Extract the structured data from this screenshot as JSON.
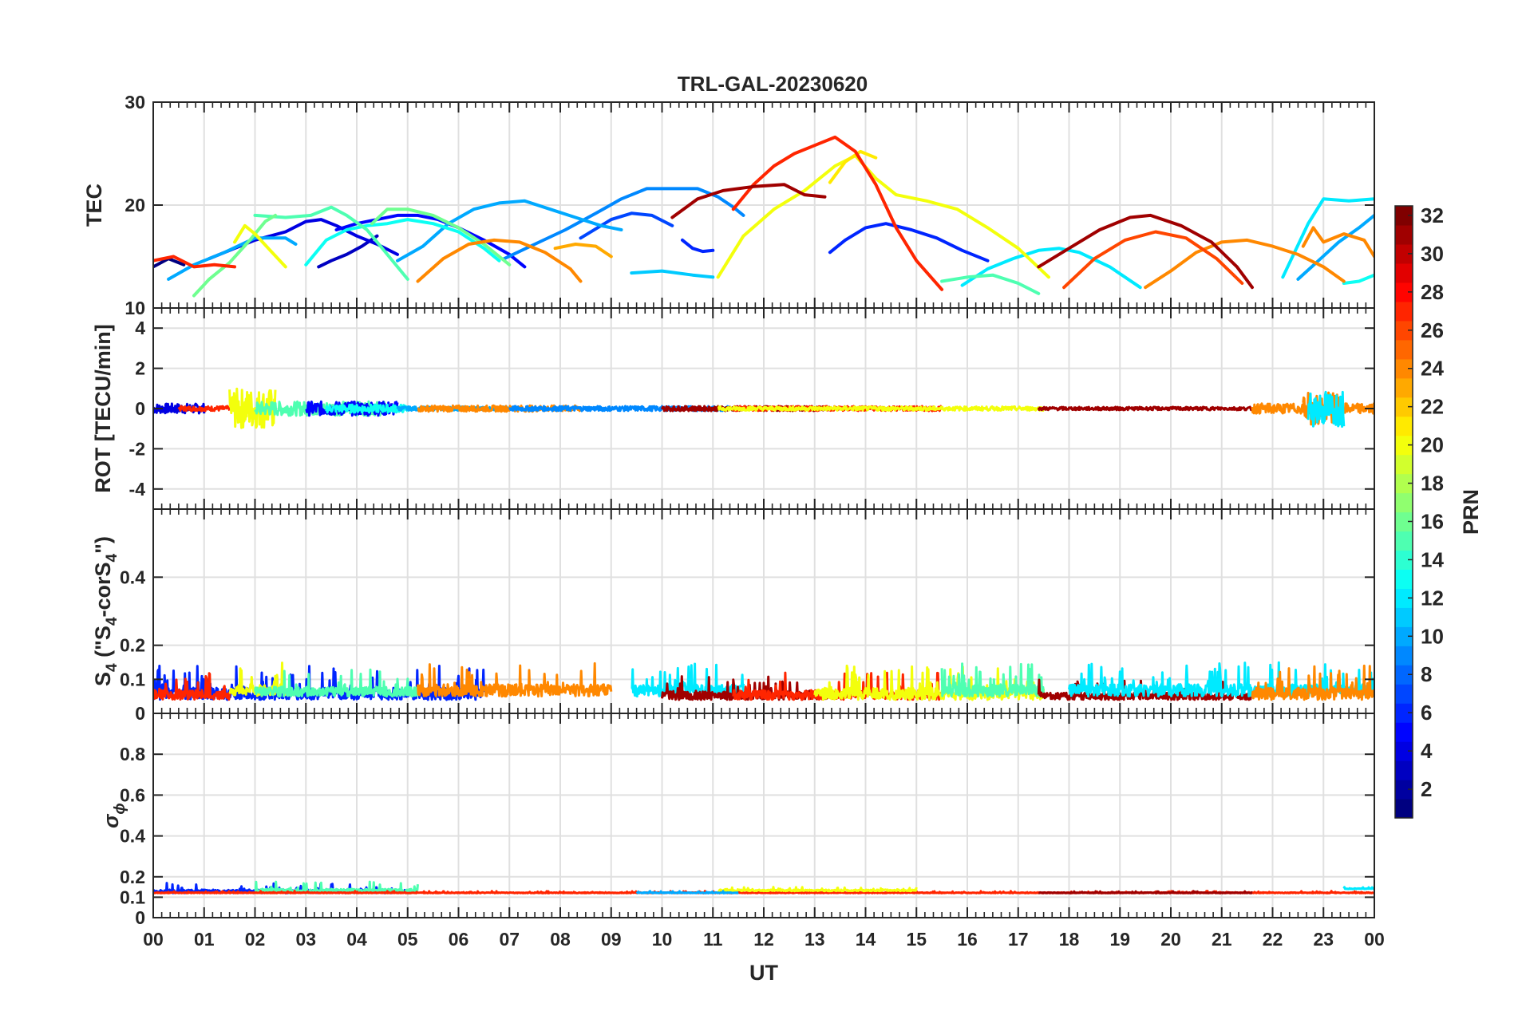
{
  "figure": {
    "title": "TRL-GAL-20230620",
    "x_label": "UT",
    "colorbar_label": "PRN"
  },
  "chart_data": [
    {
      "type": "line",
      "panel": "TEC",
      "ylabel": "TEC",
      "ylim": [
        10,
        30
      ],
      "yticks": [
        "10",
        "20",
        "30"
      ],
      "xlim": [
        0,
        24
      ],
      "grid": true,
      "series": [
        {
          "prn": 1,
          "x": [
            0,
            0.3,
            0.6
          ],
          "y": [
            14.0,
            14.8,
            14.2
          ]
        },
        {
          "prn": 3,
          "x": [
            3.25,
            3.5,
            3.8,
            4.1,
            4.4
          ],
          "y": [
            14.0,
            14.6,
            15.2,
            16.0,
            17.0
          ]
        },
        {
          "prn": 4,
          "x": [
            1.1,
            1.6,
            2.0,
            2.6,
            3.0,
            3.3,
            3.6,
            4.0,
            4.4,
            4.8
          ],
          "y": [
            14.8,
            15.8,
            16.6,
            17.4,
            18.4,
            18.6,
            18.0,
            17.0,
            16.2,
            15.2
          ]
        },
        {
          "prn": 5,
          "x": [
            3.6,
            4.0,
            4.4,
            4.8,
            5.2,
            5.6,
            6.0,
            6.5,
            7.0,
            7.3
          ],
          "y": [
            17.6,
            18.2,
            18.6,
            19.0,
            19.0,
            18.6,
            17.8,
            16.6,
            15.2,
            14.0
          ]
        },
        {
          "prn": 7,
          "x": [
            8.4,
            9.0,
            9.4,
            9.8,
            10.2
          ],
          "y": [
            16.8,
            18.6,
            19.2,
            19.0,
            18.0
          ]
        },
        {
          "prn": 6,
          "x": [
            10.4,
            10.6,
            10.8,
            11.0
          ],
          "y": [
            16.6,
            15.8,
            15.5,
            15.6
          ]
        },
        {
          "prn": 6,
          "x": [
            13.3,
            13.6,
            14.0,
            14.4,
            14.9,
            15.4,
            15.9,
            16.4
          ],
          "y": [
            15.4,
            16.6,
            17.8,
            18.2,
            17.6,
            16.8,
            15.6,
            14.6
          ]
        },
        {
          "prn": 9,
          "x": [
            6.9,
            7.5,
            8.1,
            8.7,
            9.2,
            9.7,
            10.2,
            10.7,
            11.1,
            11.4,
            11.6
          ],
          "y": [
            14.8,
            16.2,
            17.6,
            19.2,
            20.6,
            21.6,
            21.6,
            21.6,
            20.8,
            19.8,
            19.0
          ]
        },
        {
          "prn": 10,
          "x": [
            0.3,
            0.8,
            1.4,
            2.0,
            2.6,
            2.8
          ],
          "y": [
            12.8,
            14.2,
            15.4,
            16.8,
            16.8,
            16.2
          ]
        },
        {
          "prn": 10,
          "x": [
            22.5,
            22.9,
            23.3,
            23.7,
            24.0
          ],
          "y": [
            12.8,
            14.6,
            16.4,
            17.8,
            19.0
          ]
        },
        {
          "prn": 10,
          "x": [
            4.8,
            5.3,
            5.8,
            6.3,
            6.8,
            7.3,
            7.8,
            8.3,
            8.8,
            9.2
          ],
          "y": [
            14.6,
            16.0,
            18.2,
            19.6,
            20.2,
            20.4,
            19.6,
            18.8,
            18.0,
            17.6
          ]
        },
        {
          "prn": 11,
          "x": [
            9.4,
            10.0,
            10.6,
            11.0
          ],
          "y": [
            13.4,
            13.6,
            13.2,
            13.0
          ]
        },
        {
          "prn": 12,
          "x": [
            15.9,
            16.4,
            16.9,
            17.4,
            17.8,
            18.2,
            18.8,
            19.4
          ],
          "y": [
            12.2,
            13.8,
            14.8,
            15.6,
            15.8,
            15.4,
            14.0,
            12.0
          ]
        },
        {
          "prn": 12,
          "x": [
            22.2,
            22.7,
            23.0,
            23.5,
            24.0
          ],
          "y": [
            13.0,
            18.2,
            20.6,
            20.4,
            20.6
          ]
        },
        {
          "prn": 13,
          "x": [
            23.4,
            23.7,
            24.0
          ],
          "y": [
            12.4,
            12.6,
            13.2
          ]
        },
        {
          "prn": 13,
          "x": [
            3.0,
            3.4,
            3.8,
            4.2,
            4.6,
            5.0,
            5.5,
            6.0,
            6.5,
            6.8
          ],
          "y": [
            14.2,
            16.6,
            17.6,
            18.0,
            18.2,
            18.6,
            18.2,
            17.4,
            15.8,
            14.6
          ]
        },
        {
          "prn": 15,
          "x": [
            2.0,
            2.6,
            3.1,
            3.5,
            3.8,
            4.2,
            4.6,
            5.0
          ],
          "y": [
            19.0,
            18.8,
            19.0,
            19.8,
            19.0,
            17.6,
            15.2,
            12.8
          ]
        },
        {
          "prn": 15,
          "x": [
            15.5,
            16.0,
            16.5,
            17.0,
            17.4
          ],
          "y": [
            12.6,
            13.0,
            13.2,
            12.4,
            11.4
          ]
        },
        {
          "prn": 16,
          "x": [
            0.8,
            1.1,
            1.5,
            1.9,
            2.2,
            2.4
          ],
          "y": [
            11.2,
            12.8,
            14.4,
            16.6,
            18.4,
            19.0
          ]
        },
        {
          "prn": 16,
          "x": [
            4.3,
            4.6,
            5.0,
            5.5,
            6.0,
            6.5,
            7.0
          ],
          "y": [
            18.2,
            19.6,
            19.6,
            19.0,
            17.8,
            16.2,
            14.2
          ]
        },
        {
          "prn": 20,
          "x": [
            1.6,
            1.8,
            2.0,
            2.3,
            2.6
          ],
          "y": [
            16.4,
            18.0,
            17.2,
            15.6,
            14.0
          ]
        },
        {
          "prn": 20,
          "x": [
            11.1,
            11.6,
            12.2,
            12.8,
            13.4,
            13.8,
            14.2,
            14.6,
            15.2,
            15.8,
            16.4,
            17.0,
            17.6
          ],
          "y": [
            13.0,
            17.0,
            19.6,
            21.4,
            23.8,
            24.8,
            22.6,
            21.0,
            20.4,
            19.6,
            17.8,
            15.8,
            13.0
          ]
        },
        {
          "prn": 21,
          "x": [
            13.3,
            13.6,
            13.9,
            14.2
          ],
          "y": [
            22.2,
            24.2,
            25.2,
            24.6
          ]
        },
        {
          "prn": 23,
          "x": [
            7.9,
            8.3,
            8.7,
            9.0
          ],
          "y": [
            15.8,
            16.2,
            16.0,
            15.0
          ]
        },
        {
          "prn": 24,
          "x": [
            5.2,
            5.7,
            6.2,
            6.7,
            7.2,
            7.7,
            8.2,
            8.4
          ],
          "y": [
            12.6,
            14.8,
            16.2,
            16.6,
            16.4,
            15.4,
            13.8,
            12.6
          ]
        },
        {
          "prn": 24,
          "x": [
            19.5,
            20.0,
            20.5,
            21.0,
            21.5,
            22.0,
            22.5,
            23.0,
            23.4
          ],
          "y": [
            12.0,
            13.6,
            15.4,
            16.4,
            16.6,
            16.0,
            15.2,
            14.0,
            12.6
          ]
        },
        {
          "prn": 24,
          "x": [
            22.6,
            22.8,
            23.0,
            23.4,
            23.8,
            24.0
          ],
          "y": [
            16.0,
            17.8,
            16.4,
            17.2,
            16.6,
            15.0
          ]
        },
        {
          "prn": 26,
          "x": [
            17.9,
            18.5,
            19.1,
            19.7,
            20.3,
            20.9,
            21.4
          ],
          "y": [
            12.0,
            14.8,
            16.6,
            17.4,
            16.8,
            14.8,
            12.4
          ]
        },
        {
          "prn": 27,
          "x": [
            0.0,
            0.4,
            0.8,
            1.2,
            1.6
          ],
          "y": [
            14.6,
            15.0,
            14.0,
            14.2,
            14.0
          ]
        },
        {
          "prn": 27,
          "x": [
            11.4,
            11.8,
            12.2,
            12.6,
            13.0,
            13.4,
            13.8,
            14.2,
            14.6,
            15.0,
            15.5
          ],
          "y": [
            19.6,
            22.0,
            23.8,
            25.0,
            25.8,
            26.6,
            25.2,
            22.0,
            17.8,
            14.6,
            11.8
          ]
        },
        {
          "prn": 31,
          "x": [
            10.2,
            10.7,
            11.2,
            11.8,
            12.4,
            12.8,
            13.2
          ],
          "y": [
            18.8,
            20.6,
            21.4,
            21.8,
            22.0,
            21.0,
            20.8
          ]
        },
        {
          "prn": 31,
          "x": [
            17.4,
            18.0,
            18.6,
            19.2,
            19.6,
            20.2,
            20.8,
            21.3,
            21.6
          ],
          "y": [
            14.0,
            15.8,
            17.6,
            18.8,
            19.0,
            18.0,
            16.4,
            14.0,
            12.0
          ]
        }
      ]
    },
    {
      "type": "line",
      "panel": "ROT",
      "ylabel": "ROT [TECU/min]",
      "ylim": [
        -5,
        5
      ],
      "yticks": [
        "-4",
        "-2",
        "0",
        "2",
        "4"
      ],
      "grid": true,
      "noise_traces": [
        {
          "prn": 4,
          "x0": 0.0,
          "x1": 1.0,
          "amp": 0.25
        },
        {
          "prn": 27,
          "x0": 0.5,
          "x1": 1.5,
          "amp": 0.12
        },
        {
          "prn": 20,
          "x0": 1.5,
          "x1": 2.4,
          "amp": 1.0
        },
        {
          "prn": 15,
          "x0": 2.0,
          "x1": 4.6,
          "amp": 0.35
        },
        {
          "prn": 5,
          "x0": 3.0,
          "x1": 4.8,
          "amp": 0.35
        },
        {
          "prn": 13,
          "x0": 3.4,
          "x1": 5.0,
          "amp": 0.2
        },
        {
          "prn": 10,
          "x0": 4.8,
          "x1": 7.0,
          "amp": 0.1
        },
        {
          "prn": 24,
          "x0": 5.2,
          "x1": 8.4,
          "amp": 0.15
        },
        {
          "prn": 9,
          "x0": 7.0,
          "x1": 11.5,
          "amp": 0.12
        },
        {
          "prn": 31,
          "x0": 10.0,
          "x1": 13.3,
          "amp": 0.12
        },
        {
          "prn": 27,
          "x0": 11.4,
          "x1": 15.5,
          "amp": 0.12
        },
        {
          "prn": 20,
          "x0": 11.1,
          "x1": 17.5,
          "amp": 0.1
        },
        {
          "prn": 31,
          "x0": 17.4,
          "x1": 21.6,
          "amp": 0.08
        },
        {
          "prn": 24,
          "x0": 21.6,
          "x1": 24.0,
          "amp": 0.25
        },
        {
          "prn": 24,
          "x0": 22.6,
          "x1": 23.3,
          "amp": 0.8
        },
        {
          "prn": 12,
          "x0": 22.7,
          "x1": 23.4,
          "amp": 0.9
        }
      ]
    },
    {
      "type": "line",
      "panel": "S4",
      "ylabel": "S4 (\"S4-corS4\")",
      "ylim": [
        0,
        0.6
      ],
      "yticks": [
        "0",
        "0.1",
        "0.2",
        "0.4"
      ],
      "grid": true,
      "noise_traces": [
        {
          "prn": 6,
          "x0": 0.0,
          "x1": 6.5,
          "base": 0.04,
          "amp": 0.1
        },
        {
          "prn": 27,
          "x0": 0.0,
          "x1": 1.5,
          "base": 0.04,
          "amp": 0.08
        },
        {
          "prn": 20,
          "x0": 1.5,
          "x1": 2.6,
          "base": 0.05,
          "amp": 0.1
        },
        {
          "prn": 15,
          "x0": 2.0,
          "x1": 5.2,
          "base": 0.05,
          "amp": 0.08
        },
        {
          "prn": 24,
          "x0": 5.2,
          "x1": 9.0,
          "base": 0.05,
          "amp": 0.1
        },
        {
          "prn": 12,
          "x0": 9.4,
          "x1": 11.6,
          "base": 0.05,
          "amp": 0.1
        },
        {
          "prn": 31,
          "x0": 10.0,
          "x1": 13.3,
          "base": 0.04,
          "amp": 0.07
        },
        {
          "prn": 27,
          "x0": 11.4,
          "x1": 15.5,
          "base": 0.04,
          "amp": 0.08
        },
        {
          "prn": 20,
          "x0": 13.0,
          "x1": 17.5,
          "base": 0.04,
          "amp": 0.1
        },
        {
          "prn": 15,
          "x0": 15.5,
          "x1": 17.5,
          "base": 0.05,
          "amp": 0.1
        },
        {
          "prn": 31,
          "x0": 17.4,
          "x1": 21.6,
          "base": 0.04,
          "amp": 0.06
        },
        {
          "prn": 12,
          "x0": 18.0,
          "x1": 24.0,
          "base": 0.05,
          "amp": 0.1
        },
        {
          "prn": 24,
          "x0": 21.6,
          "x1": 24.0,
          "base": 0.04,
          "amp": 0.1
        }
      ]
    },
    {
      "type": "line",
      "panel": "sigma_phi",
      "ylabel": "σ_ϕ",
      "ylim": [
        0,
        1
      ],
      "yticks": [
        "0",
        "0.1",
        "0.2",
        "0.4",
        "0.6",
        "0.8"
      ],
      "grid": true,
      "noise_traces": [
        {
          "prn": 6,
          "x0": 0.0,
          "x1": 5.0,
          "base": 0.12,
          "amp": 0.05
        },
        {
          "prn": 15,
          "x0": 2.0,
          "x1": 5.2,
          "base": 0.12,
          "amp": 0.06
        },
        {
          "prn": 27,
          "x0": 0.0,
          "x1": 24.0,
          "base": 0.12,
          "amp": 0.01
        },
        {
          "prn": 20,
          "x0": 11.1,
          "x1": 15.0,
          "base": 0.13,
          "amp": 0.02
        },
        {
          "prn": 10,
          "x0": 9.5,
          "x1": 11.5,
          "base": 0.12,
          "amp": 0.01
        },
        {
          "prn": 31,
          "x0": 17.4,
          "x1": 21.6,
          "base": 0.12,
          "amp": 0.01
        },
        {
          "prn": 12,
          "x0": 23.4,
          "x1": 24.0,
          "base": 0.14,
          "amp": 0.01
        }
      ]
    }
  ],
  "x_ticks": [
    "00",
    "01",
    "02",
    "03",
    "04",
    "05",
    "06",
    "07",
    "08",
    "09",
    "10",
    "11",
    "12",
    "13",
    "14",
    "15",
    "16",
    "17",
    "18",
    "19",
    "20",
    "21",
    "22",
    "23",
    "00"
  ],
  "colorbar": {
    "min": 1,
    "max": 32,
    "ticks": [
      "2",
      "4",
      "6",
      "8",
      "10",
      "12",
      "14",
      "16",
      "18",
      "20",
      "22",
      "24",
      "26",
      "28",
      "30",
      "32"
    ],
    "colormap": "jet"
  }
}
